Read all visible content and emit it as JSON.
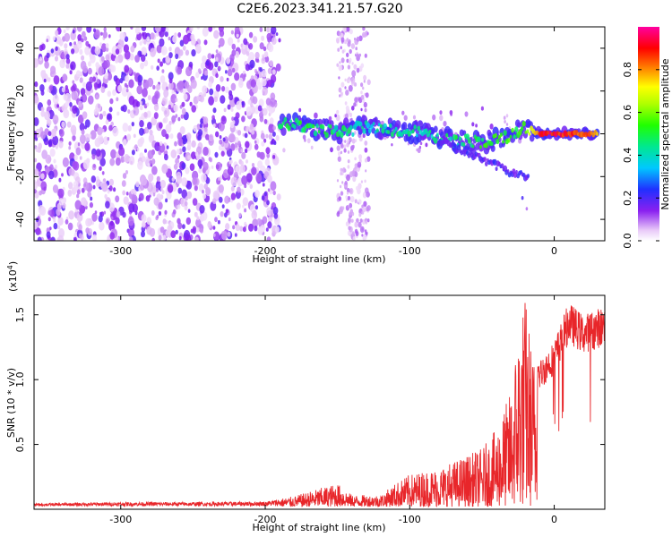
{
  "title": "C2E6.2023.341.21.57.G20",
  "colors": {
    "signal_line": "#e8262a",
    "background_scatter": "#7a1cf2",
    "axis": "#000000"
  },
  "chart_data": [
    {
      "type": "heatmap",
      "xlabel": "Height of straight line (km)",
      "ylabel": "Frequency (Hz)",
      "xlim": [
        -360,
        35
      ],
      "ylim": [
        -50,
        50
      ],
      "xticks": [
        -300,
        -200,
        -100,
        0
      ],
      "xtick_labels": [
        "-300",
        "-200",
        "-100",
        "0"
      ],
      "yticks": [
        -40,
        -20,
        0,
        20,
        40
      ],
      "ytick_labels": [
        "-40",
        "-20",
        "0",
        "20",
        "40"
      ],
      "colorbar": {
        "label": "Normalized spectral amplitude",
        "range": [
          0,
          1
        ],
        "ticks": [
          0.0,
          0.2,
          0.4,
          0.6,
          0.8
        ],
        "tick_labels": [
          "0.0",
          "0.2",
          "0.4",
          "0.6",
          "0.8"
        ],
        "colormap": "rainbow (white-purple-blue-cyan-green-yellow-red-magenta)"
      },
      "features": {
        "noise_region_x": [
          -360,
          -190
        ],
        "noise_band_x": [
          -150,
          -128
        ],
        "signal_track": [
          {
            "x": -190,
            "y": 5,
            "amp": 0.45
          },
          {
            "x": -170,
            "y": 3,
            "amp": 0.5
          },
          {
            "x": -150,
            "y": 1,
            "amp": 0.45
          },
          {
            "x": -130,
            "y": 3,
            "amp": 0.4
          },
          {
            "x": -110,
            "y": 2,
            "amp": 0.45
          },
          {
            "x": -90,
            "y": 0,
            "amp": 0.4
          },
          {
            "x": -70,
            "y": -3,
            "amp": 0.45
          },
          {
            "x": -50,
            "y": -4,
            "amp": 0.5
          },
          {
            "x": -35,
            "y": -2,
            "amp": 0.55
          },
          {
            "x": -22,
            "y": 3,
            "amp": 0.5
          },
          {
            "x": -10,
            "y": 0,
            "amp": 0.9
          },
          {
            "x": 0,
            "y": 0,
            "amp": 0.9
          },
          {
            "x": 15,
            "y": 0,
            "amp": 0.85
          },
          {
            "x": 30,
            "y": 0,
            "amp": 0.8
          }
        ],
        "drift_track": [
          {
            "x": -80,
            "y": -3
          },
          {
            "x": -50,
            "y": -12
          },
          {
            "x": -30,
            "y": -18
          },
          {
            "x": -18,
            "y": -20
          }
        ]
      }
    },
    {
      "type": "line",
      "xlabel": "Height of straight line (km)",
      "ylabel": "SNR (10 * v/v)",
      "y_multiplier_label": "(x10",
      "y_multiplier_exponent": "4",
      "y_multiplier_close": ")",
      "xlim": [
        -360,
        35
      ],
      "ylim": [
        0,
        16500
      ],
      "xticks": [
        -300,
        -200,
        -100,
        0
      ],
      "xtick_labels": [
        "-300",
        "-200",
        "-100",
        "0"
      ],
      "yticks": [
        5000,
        10000,
        15000
      ],
      "ytick_labels": [
        "0.5",
        "1.0",
        "1.5"
      ],
      "series": [
        {
          "envelope": [
            {
              "x": -360,
              "y": 300
            },
            {
              "x": -300,
              "y": 400
            },
            {
              "x": -250,
              "y": 400
            },
            {
              "x": -200,
              "y": 450
            },
            {
              "x": -180,
              "y": 800
            },
            {
              "x": -160,
              "y": 1500
            },
            {
              "x": -150,
              "y": 1800
            },
            {
              "x": -140,
              "y": 900
            },
            {
              "x": -120,
              "y": 900
            },
            {
              "x": -110,
              "y": 1800
            },
            {
              "x": -100,
              "y": 2500
            },
            {
              "x": -80,
              "y": 3000
            },
            {
              "x": -60,
              "y": 4000
            },
            {
              "x": -50,
              "y": 4500
            },
            {
              "x": -40,
              "y": 6000
            },
            {
              "x": -30,
              "y": 9000
            },
            {
              "x": -25,
              "y": 14000
            },
            {
              "x": -20,
              "y": 16500
            },
            {
              "x": -15,
              "y": 12000
            },
            {
              "x": -10,
              "y": 11500
            },
            {
              "x": 0,
              "y": 13000
            },
            {
              "x": 10,
              "y": 16000
            },
            {
              "x": 20,
              "y": 15000
            },
            {
              "x": 30,
              "y": 15500
            },
            {
              "x": 35,
              "y": 15700
            }
          ]
        }
      ]
    }
  ]
}
